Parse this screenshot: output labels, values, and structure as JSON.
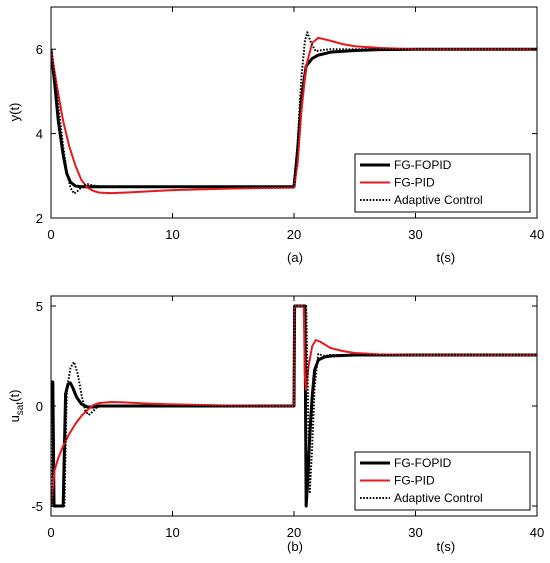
{
  "chart_data": [
    {
      "type": "line",
      "panel_label": "(a)",
      "xlabel": "t(s)",
      "ylabel": "y(t)",
      "xlim": [
        0,
        40
      ],
      "ylim": [
        2,
        7
      ],
      "xticks": [
        0,
        10,
        20,
        30,
        40
      ],
      "yticks": [
        2,
        4,
        6
      ],
      "grid": false,
      "legend_position": "bottom-right",
      "series": [
        {
          "name": "FG-FOPID",
          "color": "#000000",
          "style": "solid-thick",
          "x": [
            0,
            0.3,
            0.6,
            1.0,
            1.3,
            1.6,
            2.0,
            2.5,
            3.0,
            5,
            10,
            15,
            20,
            20.3,
            20.6,
            21.0,
            21.5,
            22,
            23,
            25,
            27,
            30,
            35,
            40
          ],
          "y": [
            6.0,
            5.2,
            4.3,
            3.5,
            3.05,
            2.85,
            2.76,
            2.74,
            2.74,
            2.74,
            2.74,
            2.74,
            2.74,
            3.6,
            4.8,
            5.6,
            5.78,
            5.86,
            5.93,
            5.97,
            5.99,
            6.0,
            6.0,
            6.0
          ]
        },
        {
          "name": "FG-PID",
          "color": "#e8191c",
          "style": "solid",
          "x": [
            0,
            0.5,
            1.0,
            1.5,
            2.0,
            2.5,
            3.0,
            3.5,
            4.0,
            5,
            6,
            8,
            10,
            15,
            20,
            20.3,
            20.6,
            21.0,
            21.5,
            22,
            23,
            24,
            25,
            27,
            30,
            35,
            40
          ],
          "y": [
            6.0,
            5.1,
            4.3,
            3.7,
            3.25,
            2.9,
            2.72,
            2.64,
            2.6,
            2.59,
            2.6,
            2.63,
            2.66,
            2.7,
            2.72,
            3.3,
            4.5,
            5.6,
            6.15,
            6.27,
            6.2,
            6.12,
            6.07,
            6.03,
            6.0,
            6.0,
            6.0
          ]
        },
        {
          "name": "Adaptive Control",
          "color": "#000000",
          "style": "dotted",
          "x": [
            0,
            0.5,
            1.0,
            1.3,
            1.6,
            1.9,
            2.2,
            2.6,
            3.0,
            3.5,
            4.0,
            5,
            10,
            15,
            20,
            20.3,
            20.6,
            20.9,
            21.1,
            21.4,
            21.8,
            22.3,
            23,
            25,
            30,
            40
          ],
          "y": [
            6.0,
            4.9,
            3.7,
            3.1,
            2.72,
            2.58,
            2.64,
            2.76,
            2.8,
            2.77,
            2.75,
            2.74,
            2.74,
            2.74,
            2.74,
            3.8,
            5.3,
            6.2,
            6.4,
            6.15,
            5.95,
            5.98,
            6.0,
            6.0,
            6.0,
            6.0
          ]
        }
      ]
    },
    {
      "type": "line",
      "panel_label": "(b)",
      "xlabel": "t(s)",
      "ylabel": "u",
      "ylabel_subscript": "sat",
      "ylabel_suffix": "(t)",
      "xlim": [
        0,
        40
      ],
      "ylim": [
        -5.5,
        5.5
      ],
      "xticks": [
        0,
        10,
        20,
        30,
        40
      ],
      "yticks": [
        -5,
        0,
        5
      ],
      "grid": false,
      "legend_position": "bottom-right",
      "series": [
        {
          "name": "FG-FOPID",
          "color": "#000000",
          "style": "solid-thick",
          "x": [
            0,
            0.15,
            0.25,
            0.3,
            1.0,
            1.2,
            1.4,
            1.6,
            1.8,
            2.1,
            2.5,
            3.0,
            3.5,
            4.0,
            5,
            10,
            15,
            20,
            20.05,
            20.2,
            20.9,
            21.0,
            21.1,
            21.3,
            21.5,
            21.7,
            22.0,
            22.5,
            23,
            25,
            30,
            40
          ],
          "y": [
            1.2,
            1.2,
            -5.0,
            -5.0,
            -5.0,
            0.6,
            1.1,
            1.15,
            0.9,
            0.45,
            0.1,
            -0.05,
            -0.05,
            0.0,
            0.0,
            0.0,
            0.0,
            0.0,
            5.0,
            5.0,
            5.0,
            -5.0,
            -4.0,
            -1.5,
            0.5,
            1.8,
            2.3,
            2.45,
            2.5,
            2.55,
            2.55,
            2.55
          ]
        },
        {
          "name": "FG-PID",
          "color": "#e8191c",
          "style": "solid",
          "x": [
            0,
            0.3,
            0.6,
            1.0,
            1.5,
            2.0,
            2.5,
            3.0,
            3.5,
            4.0,
            5,
            6,
            8,
            10,
            15,
            20,
            20.05,
            20.2,
            20.8,
            20.9,
            21.0,
            21.2,
            21.5,
            21.8,
            22.2,
            23,
            24,
            25,
            27,
            30,
            40
          ],
          "y": [
            -5.0,
            -3.2,
            -2.6,
            -2.0,
            -1.4,
            -0.9,
            -0.5,
            -0.2,
            0.05,
            0.15,
            0.2,
            0.18,
            0.12,
            0.08,
            0.02,
            0.0,
            5.0,
            5.0,
            5.0,
            1.5,
            0.8,
            2.0,
            3.0,
            3.3,
            3.2,
            2.9,
            2.75,
            2.65,
            2.58,
            2.55,
            2.55
          ]
        },
        {
          "name": "Adaptive Control",
          "color": "#000000",
          "style": "dotted",
          "x": [
            0,
            0.05,
            0.4,
            1.1,
            1.3,
            1.6,
            1.9,
            2.2,
            2.5,
            2.8,
            3.1,
            3.4,
            3.8,
            4.2,
            5,
            10,
            15,
            20,
            20.05,
            20.4,
            21.0,
            21.3,
            21.5,
            21.7,
            22.0,
            22.5,
            23,
            25,
            30,
            40
          ],
          "y": [
            0.0,
            -5.0,
            -5.0,
            -5.0,
            0.8,
            1.9,
            2.2,
            1.6,
            0.6,
            -0.2,
            -0.45,
            -0.3,
            -0.05,
            0.0,
            0.0,
            0.0,
            0.0,
            0.0,
            5.0,
            5.0,
            5.0,
            -4.3,
            -2.0,
            1.0,
            2.6,
            2.5,
            2.55,
            2.55,
            2.55,
            2.55
          ]
        }
      ]
    }
  ]
}
